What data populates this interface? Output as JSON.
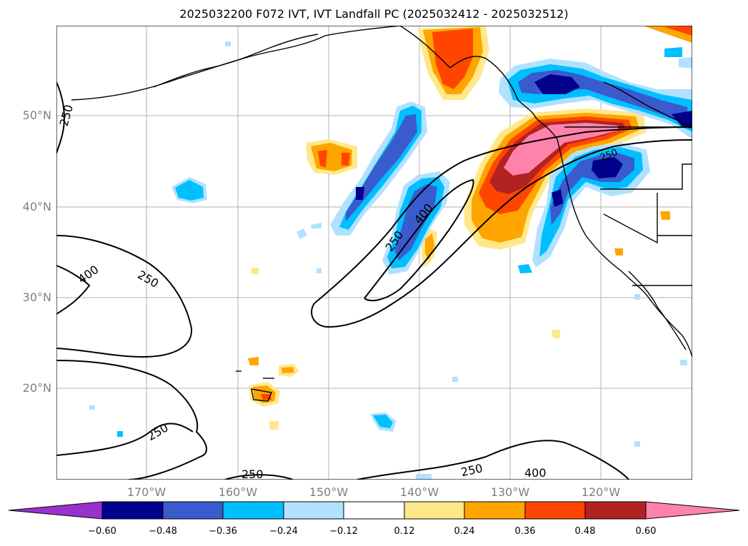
{
  "title": "2025032200 F072 IVT, IVT Landfall PC (2025032412 - 2025032512)",
  "lat_labels": [
    "50°N",
    "40°N",
    "30°N",
    "20°N"
  ],
  "lon_labels": [
    "170°W",
    "160°W",
    "150°W",
    "140°W",
    "130°W",
    "120°W"
  ],
  "contour_labels": [
    "250",
    "400",
    "250",
    "400",
    "250",
    "250",
    "250",
    "250",
    "400",
    "250"
  ],
  "colorbar": {
    "ticks": [
      "−0.60",
      "−0.48",
      "−0.36",
      "−0.24",
      "−0.12",
      "0.12",
      "0.24",
      "0.36",
      "0.48",
      "0.60"
    ],
    "colors": [
      "#9932cc",
      "#00008b",
      "#3a5bcd",
      "#00bfff",
      "#b0e2ff",
      "#ffffff",
      "#ffe88a",
      "#ffa500",
      "#ff4500",
      "#b22222",
      "#ff82ab"
    ]
  },
  "colors": {
    "grid": "#b0b0b0",
    "coast": "#000000",
    "contour": "#000000"
  }
}
